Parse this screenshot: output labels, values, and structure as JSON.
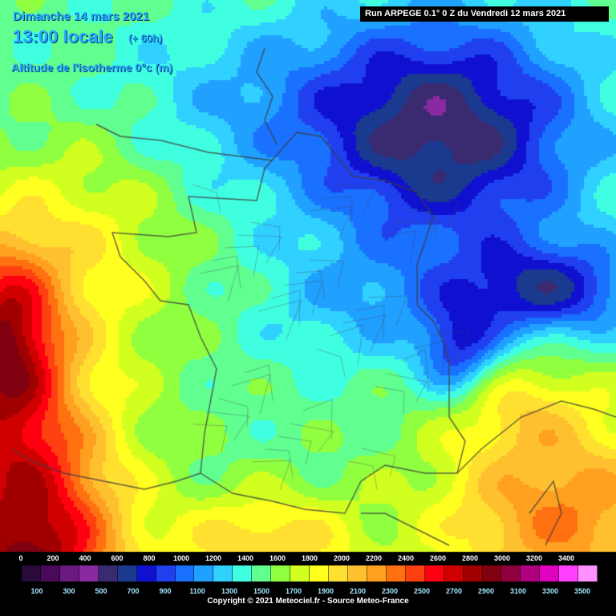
{
  "header": {
    "date": "Dimanche 14 mars 2021",
    "time": "13:00 locale",
    "lead": "(+ 60h)",
    "parameter": "Altitude de l'isotherme 0°c (m)",
    "run": "Run ARPEGE 0.1° 0 Z du Vendredi 12 mars 2021"
  },
  "legend": {
    "top_ticks": [
      "0",
      "200",
      "400",
      "600",
      "800",
      "1000",
      "1200",
      "1400",
      "1600",
      "1800",
      "2000",
      "2200",
      "2400",
      "2600",
      "2800",
      "3000",
      "3200",
      "3400"
    ],
    "bottom_ticks": [
      "100",
      "300",
      "500",
      "700",
      "900",
      "1100",
      "1300",
      "1500",
      "1700",
      "1900",
      "2100",
      "2300",
      "2500",
      "2700",
      "2900",
      "3100",
      "3300",
      "3500"
    ],
    "colors": [
      "#2a0a3a",
      "#4a0a5a",
      "#6a1a80",
      "#8a2aa0",
      "#3a2a70",
      "#1a3a90",
      "#1010d0",
      "#2040f0",
      "#1a70ff",
      "#20a0ff",
      "#30d0ff",
      "#40ffe0",
      "#60ff90",
      "#90ff40",
      "#d0ff20",
      "#ffff20",
      "#ffe030",
      "#ffc030",
      "#ffa020",
      "#ff7010",
      "#ff4010",
      "#ff0010",
      "#d00000",
      "#a00000",
      "#800010",
      "#900040",
      "#b00080",
      "#e000c0",
      "#ff40ff",
      "#ff90ff"
    ],
    "copyright": "Copyright © 2021 Meteociel.fr - Source Meteo-France"
  }
}
